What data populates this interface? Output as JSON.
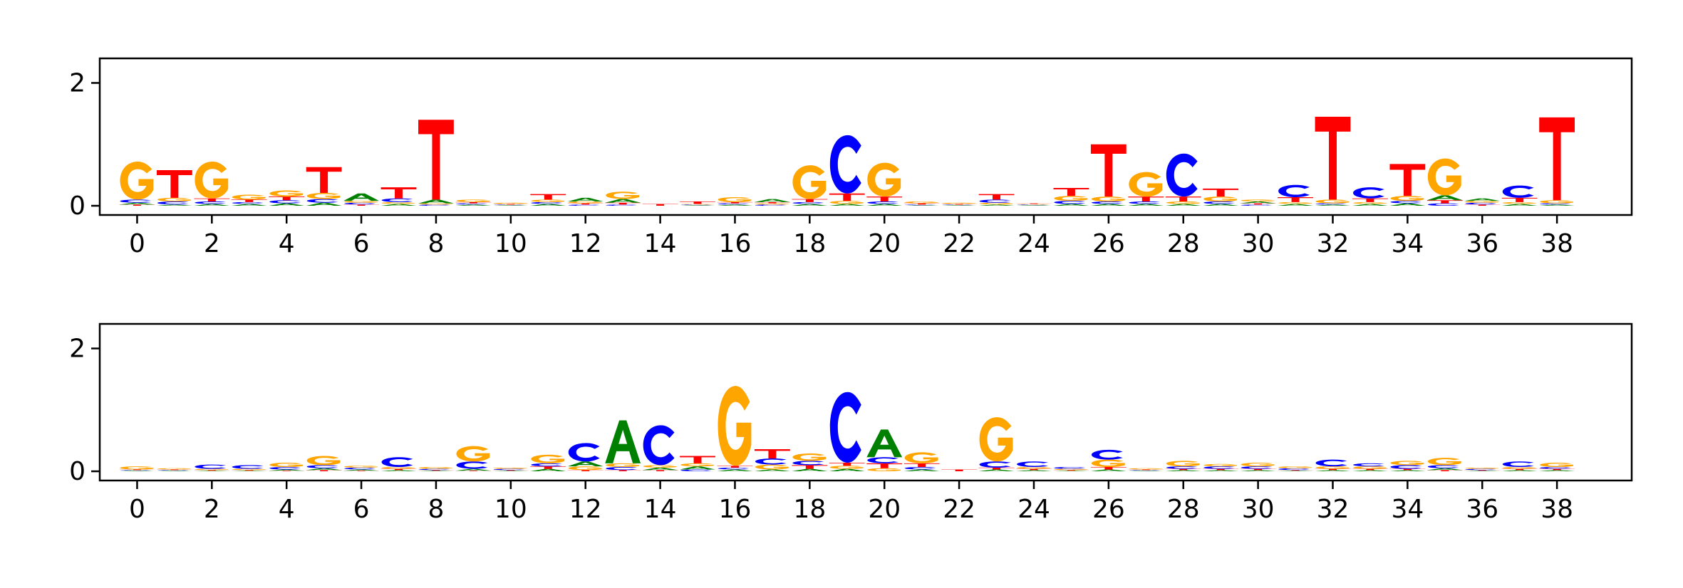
{
  "colors": {
    "A": "#008000",
    "C": "#0000ff",
    "G": "#ffa500",
    "T": "#ff0000",
    "axis": "#000000",
    "background": "#ffffff"
  },
  "chart_data": [
    {
      "type": "sequence-logo",
      "title": "",
      "xlabel": "",
      "ylabel": "",
      "ylim": [
        -0.15,
        2.4
      ],
      "xlim": [
        -1,
        40
      ],
      "xticks": [
        "0",
        "2",
        "4",
        "6",
        "8",
        "10",
        "12",
        "14",
        "16",
        "18",
        "20",
        "22",
        "24",
        "26",
        "28",
        "30",
        "32",
        "34",
        "36",
        "38"
      ],
      "yticks": [
        "0",
        "2"
      ],
      "letters_order": [
        "A",
        "C",
        "G",
        "T"
      ],
      "positions": [
        {
          "x": 0,
          "A": 0.03,
          "C": 0.05,
          "G": 0.62,
          "T": 0.02
        },
        {
          "x": 1,
          "A": 0.02,
          "C": 0.05,
          "G": 0.06,
          "T": 0.45
        },
        {
          "x": 2,
          "A": 0.03,
          "C": 0.04,
          "G": 0.6,
          "T": 0.05
        },
        {
          "x": 3,
          "A": 0.03,
          "C": 0.03,
          "G": 0.08,
          "T": 0.04
        },
        {
          "x": 4,
          "A": 0.04,
          "C": 0.05,
          "G": 0.1,
          "T": 0.06
        },
        {
          "x": 5,
          "A": 0.05,
          "C": 0.06,
          "G": 0.1,
          "T": 0.42
        },
        {
          "x": 6,
          "A": 0.12,
          "C": 0.03,
          "G": 0.03,
          "T": 0.02
        },
        {
          "x": 7,
          "A": 0.03,
          "C": 0.06,
          "G": 0.03,
          "T": 0.18
        },
        {
          "x": 8,
          "A": 0.06,
          "C": 0.02,
          "G": 0.02,
          "T": 1.3
        },
        {
          "x": 9,
          "A": 0.02,
          "C": 0.02,
          "G": 0.04,
          "T": 0.02
        },
        {
          "x": 10,
          "A": 0.01,
          "C": 0.01,
          "G": 0.02,
          "T": 0.01
        },
        {
          "x": 11,
          "A": 0.03,
          "C": 0.03,
          "G": 0.04,
          "T": 0.09
        },
        {
          "x": 12,
          "A": 0.06,
          "C": 0.02,
          "G": 0.03,
          "T": 0.02
        },
        {
          "x": 13,
          "A": 0.06,
          "C": 0.02,
          "G": 0.12,
          "T": 0.03
        },
        {
          "x": 14,
          "A": 0.0,
          "C": 0.0,
          "G": 0.0,
          "T": 0.03
        },
        {
          "x": 15,
          "A": 0.01,
          "C": 0.01,
          "G": 0.01,
          "T": 0.04
        },
        {
          "x": 16,
          "A": 0.02,
          "C": 0.02,
          "G": 0.08,
          "T": 0.02
        },
        {
          "x": 17,
          "A": 0.05,
          "C": 0.02,
          "G": 0.02,
          "T": 0.02
        },
        {
          "x": 18,
          "A": 0.03,
          "C": 0.03,
          "G": 0.55,
          "T": 0.05
        },
        {
          "x": 19,
          "A": 0.03,
          "C": 0.95,
          "G": 0.05,
          "T": 0.12
        },
        {
          "x": 20,
          "A": 0.03,
          "C": 0.04,
          "G": 0.55,
          "T": 0.08
        },
        {
          "x": 21,
          "A": 0.01,
          "C": 0.01,
          "G": 0.03,
          "T": 0.02
        },
        {
          "x": 22,
          "A": 0.01,
          "C": 0.01,
          "G": 0.02,
          "T": 0.01
        },
        {
          "x": 23,
          "A": 0.02,
          "C": 0.05,
          "G": 0.03,
          "T": 0.09
        },
        {
          "x": 24,
          "A": 0.01,
          "C": 0.01,
          "G": 0.01,
          "T": 0.01
        },
        {
          "x": 25,
          "A": 0.03,
          "C": 0.05,
          "G": 0.08,
          "T": 0.13
        },
        {
          "x": 26,
          "A": 0.03,
          "C": 0.04,
          "G": 0.08,
          "T": 0.85
        },
        {
          "x": 27,
          "A": 0.03,
          "C": 0.04,
          "G": 0.4,
          "T": 0.08
        },
        {
          "x": 28,
          "A": 0.03,
          "C": 0.7,
          "G": 0.04,
          "T": 0.08
        },
        {
          "x": 29,
          "A": 0.03,
          "C": 0.04,
          "G": 0.08,
          "T": 0.13
        },
        {
          "x": 30,
          "A": 0.03,
          "C": 0.02,
          "G": 0.03,
          "T": 0.02
        },
        {
          "x": 31,
          "A": 0.03,
          "C": 0.2,
          "G": 0.03,
          "T": 0.08
        },
        {
          "x": 32,
          "A": 0.02,
          "C": 0.02,
          "G": 0.06,
          "T": 1.35
        },
        {
          "x": 33,
          "A": 0.03,
          "C": 0.18,
          "G": 0.03,
          "T": 0.06
        },
        {
          "x": 34,
          "A": 0.04,
          "C": 0.04,
          "G": 0.08,
          "T": 0.52
        },
        {
          "x": 35,
          "A": 0.08,
          "C": 0.04,
          "G": 0.6,
          "T": 0.05
        },
        {
          "x": 36,
          "A": 0.04,
          "C": 0.03,
          "G": 0.03,
          "T": 0.02
        },
        {
          "x": 37,
          "A": 0.03,
          "C": 0.2,
          "G": 0.03,
          "T": 0.07
        },
        {
          "x": 38,
          "A": 0.02,
          "C": 0.02,
          "G": 0.05,
          "T": 1.35
        }
      ]
    },
    {
      "type": "sequence-logo",
      "title": "",
      "xlabel": "",
      "ylabel": "",
      "ylim": [
        -0.15,
        2.4
      ],
      "xlim": [
        -1,
        40
      ],
      "xticks": [
        "0",
        "2",
        "4",
        "6",
        "8",
        "10",
        "12",
        "14",
        "16",
        "18",
        "20",
        "22",
        "24",
        "26",
        "28",
        "30",
        "32",
        "34",
        "36",
        "38"
      ],
      "yticks": [
        "0",
        "2"
      ],
      "letters_order": [
        "A",
        "C",
        "G",
        "T"
      ],
      "positions": [
        {
          "x": 0,
          "A": 0.01,
          "C": 0.01,
          "G": 0.05,
          "T": 0.01
        },
        {
          "x": 1,
          "A": 0.01,
          "C": 0.01,
          "G": 0.02,
          "T": 0.01
        },
        {
          "x": 2,
          "A": 0.01,
          "C": 0.07,
          "G": 0.02,
          "T": 0.01
        },
        {
          "x": 3,
          "A": 0.01,
          "C": 0.06,
          "G": 0.02,
          "T": 0.01
        },
        {
          "x": 4,
          "A": 0.02,
          "C": 0.04,
          "G": 0.07,
          "T": 0.01
        },
        {
          "x": 5,
          "A": 0.03,
          "C": 0.05,
          "G": 0.15,
          "T": 0.02
        },
        {
          "x": 6,
          "A": 0.02,
          "C": 0.03,
          "G": 0.03,
          "T": 0.01
        },
        {
          "x": 7,
          "A": 0.02,
          "C": 0.16,
          "G": 0.03,
          "T": 0.02
        },
        {
          "x": 8,
          "A": 0.01,
          "C": 0.02,
          "G": 0.03,
          "T": 0.01
        },
        {
          "x": 9,
          "A": 0.03,
          "C": 0.12,
          "G": 0.25,
          "T": 0.01
        },
        {
          "x": 10,
          "A": 0.01,
          "C": 0.02,
          "G": 0.02,
          "T": 0.01
        },
        {
          "x": 11,
          "A": 0.04,
          "C": 0.05,
          "G": 0.14,
          "T": 0.04
        },
        {
          "x": 12,
          "A": 0.08,
          "C": 0.3,
          "G": 0.06,
          "T": 0.02
        },
        {
          "x": 13,
          "A": 0.7,
          "C": 0.05,
          "G": 0.06,
          "T": 0.02
        },
        {
          "x": 14,
          "A": 0.04,
          "C": 0.65,
          "G": 0.04,
          "T": 0.02
        },
        {
          "x": 15,
          "A": 0.05,
          "C": 0.03,
          "G": 0.05,
          "T": 0.12
        },
        {
          "x": 16,
          "A": 0.03,
          "C": 0.03,
          "G": 1.3,
          "T": 0.03
        },
        {
          "x": 17,
          "A": 0.03,
          "C": 0.1,
          "G": 0.08,
          "T": 0.15
        },
        {
          "x": 18,
          "A": 0.04,
          "C": 0.07,
          "G": 0.12,
          "T": 0.06
        },
        {
          "x": 19,
          "A": 0.04,
          "C": 1.15,
          "G": 0.05,
          "T": 0.05
        },
        {
          "x": 20,
          "A": 0.45,
          "C": 0.1,
          "G": 0.05,
          "T": 0.08
        },
        {
          "x": 21,
          "A": 0.03,
          "C": 0.04,
          "G": 0.18,
          "T": 0.06
        },
        {
          "x": 22,
          "A": 0.0,
          "C": 0.0,
          "G": 0.0,
          "T": 0.03
        },
        {
          "x": 23,
          "A": 0.03,
          "C": 0.1,
          "G": 0.72,
          "T": 0.03
        },
        {
          "x": 24,
          "A": 0.02,
          "C": 0.09,
          "G": 0.03,
          "T": 0.02
        },
        {
          "x": 25,
          "A": 0.01,
          "C": 0.03,
          "G": 0.02,
          "T": 0.01
        },
        {
          "x": 26,
          "A": 0.03,
          "C": 0.16,
          "G": 0.12,
          "T": 0.04
        },
        {
          "x": 27,
          "A": 0.01,
          "C": 0.01,
          "G": 0.02,
          "T": 0.01
        },
        {
          "x": 28,
          "A": 0.02,
          "C": 0.04,
          "G": 0.09,
          "T": 0.02
        },
        {
          "x": 29,
          "A": 0.02,
          "C": 0.04,
          "G": 0.04,
          "T": 0.02
        },
        {
          "x": 30,
          "A": 0.02,
          "C": 0.04,
          "G": 0.06,
          "T": 0.02
        },
        {
          "x": 31,
          "A": 0.01,
          "C": 0.03,
          "G": 0.03,
          "T": 0.01
        },
        {
          "x": 32,
          "A": 0.02,
          "C": 0.11,
          "G": 0.04,
          "T": 0.02
        },
        {
          "x": 33,
          "A": 0.02,
          "C": 0.05,
          "G": 0.04,
          "T": 0.02
        },
        {
          "x": 34,
          "A": 0.02,
          "C": 0.06,
          "G": 0.07,
          "T": 0.02
        },
        {
          "x": 35,
          "A": 0.03,
          "C": 0.05,
          "G": 0.12,
          "T": 0.02
        },
        {
          "x": 36,
          "A": 0.01,
          "C": 0.02,
          "G": 0.02,
          "T": 0.01
        },
        {
          "x": 37,
          "A": 0.02,
          "C": 0.09,
          "G": 0.03,
          "T": 0.02
        },
        {
          "x": 38,
          "A": 0.02,
          "C": 0.03,
          "G": 0.07,
          "T": 0.02
        }
      ]
    }
  ]
}
